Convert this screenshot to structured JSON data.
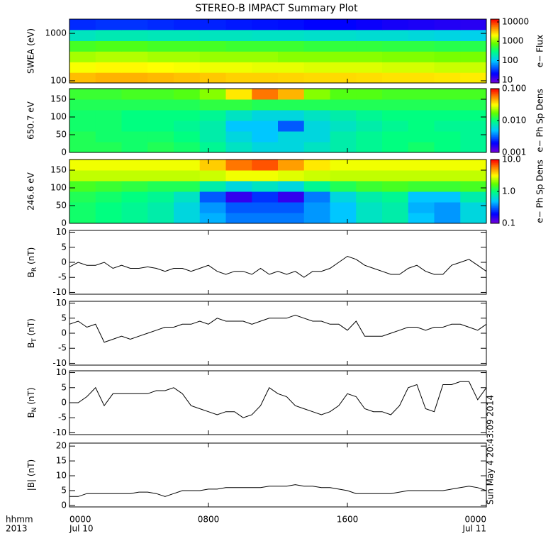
{
  "figure": {
    "title": "STEREO-B IMPACT Summary Plot",
    "xlim": [
      0,
      24
    ],
    "xticks": [
      {
        "value": 0,
        "label": "0000"
      },
      {
        "value": 8,
        "label": "0800"
      },
      {
        "value": 16,
        "label": "1600"
      },
      {
        "value": 24,
        "label": "0000"
      }
    ],
    "date_labels": [
      {
        "value": 0,
        "label": "Jul 10"
      },
      {
        "value": 24,
        "label": "Jul 11"
      }
    ],
    "x_axis_label": [
      "hhmm",
      "2013"
    ],
    "timestamp": "Sun May  4 20:43:09 2014",
    "x": [
      0,
      0.5,
      1,
      1.5,
      2,
      2.5,
      3,
      3.5,
      4,
      4.5,
      5,
      5.5,
      6,
      6.5,
      7,
      7.5,
      8,
      8.5,
      9,
      9.5,
      10,
      10.5,
      11,
      11.5,
      12,
      12.5,
      13,
      13.5,
      14,
      14.5,
      15,
      15.5,
      16,
      16.5,
      17,
      17.5,
      18,
      18.5,
      19,
      19.5,
      20,
      20.5,
      21,
      21.5,
      22,
      22.5,
      23,
      23.5,
      24
    ],
    "x_edges": [
      0,
      1.5,
      3,
      4.5,
      6,
      7.5,
      9,
      10.5,
      12,
      13.5,
      15,
      16.5,
      18,
      19.5,
      21,
      22.5,
      24
    ]
  },
  "chart_data": [
    {
      "type": "spectrogram",
      "ylabel": "SWEA (eV)",
      "ylog": true,
      "ylim": [
        90,
        2000
      ],
      "yticks": [
        100,
        1000
      ],
      "y_edges": [
        90,
        150,
        250,
        420,
        700,
        1200,
        2000
      ],
      "values": [
        [
          3500,
          3800,
          3800,
          3600,
          3400,
          3200,
          3000,
          3000,
          2900,
          2800,
          2800,
          2700,
          2600,
          2600,
          2500,
          2400
        ],
        [
          2000,
          2200,
          2200,
          2100,
          2000,
          1900,
          1900,
          1800,
          1800,
          1700,
          1700,
          1700,
          1600,
          1600,
          1500,
          1500
        ],
        [
          1200,
          1300,
          1300,
          1200,
          1200,
          1100,
          1100,
          1100,
          1000,
          1000,
          1000,
          1000,
          950,
          950,
          900,
          900
        ],
        [
          600,
          650,
          650,
          600,
          600,
          600,
          550,
          550,
          550,
          500,
          500,
          500,
          480,
          480,
          450,
          450
        ],
        [
          180,
          200,
          200,
          190,
          190,
          180,
          180,
          170,
          170,
          160,
          160,
          150,
          150,
          140,
          130,
          120
        ],
        [
          30,
          32,
          32,
          30,
          28,
          28,
          26,
          25,
          24,
          22,
          22,
          20,
          18,
          17,
          16,
          15
        ]
      ],
      "zlim": [
        7,
        14000
      ],
      "zticks": [
        10,
        100,
        1000,
        10000
      ],
      "zlabel": "e− Flux"
    },
    {
      "type": "spectrogram",
      "ylabel": "650.7 eV",
      "ylog": false,
      "ylim": [
        0,
        180
      ],
      "yticks": [
        0,
        50,
        100,
        150
      ],
      "y_edges": [
        0,
        30,
        60,
        90,
        120,
        150,
        180
      ],
      "values": [
        [
          0.012,
          0.012,
          0.011,
          0.012,
          0.011,
          0.009,
          0.007,
          0.006,
          0.006,
          0.007,
          0.008,
          0.009,
          0.01,
          0.011,
          0.01,
          0.009
        ],
        [
          0.012,
          0.011,
          0.011,
          0.011,
          0.01,
          0.008,
          0.006,
          0.005,
          0.006,
          0.006,
          0.008,
          0.009,
          0.01,
          0.01,
          0.01,
          0.009
        ],
        [
          0.011,
          0.011,
          0.01,
          0.01,
          0.009,
          0.008,
          0.005,
          0.005,
          0.003,
          0.006,
          0.007,
          0.008,
          0.009,
          0.01,
          0.009,
          0.009
        ],
        [
          0.011,
          0.011,
          0.01,
          0.01,
          0.01,
          0.009,
          0.007,
          0.006,
          0.006,
          0.007,
          0.008,
          0.009,
          0.01,
          0.01,
          0.01,
          0.01
        ],
        [
          0.012,
          0.012,
          0.012,
          0.012,
          0.012,
          0.013,
          0.013,
          0.012,
          0.012,
          0.012,
          0.012,
          0.012,
          0.012,
          0.012,
          0.012,
          0.012
        ],
        [
          0.014,
          0.014,
          0.015,
          0.015,
          0.016,
          0.02,
          0.035,
          0.06,
          0.045,
          0.02,
          0.016,
          0.016,
          0.015,
          0.015,
          0.015,
          0.015
        ]
      ],
      "zlim": [
        0.001,
        0.1
      ],
      "zticks": [
        0.001,
        {
          "value": 0.01,
          "label": "0.010"
        },
        {
          "value": 0.1,
          "label": "0.100"
        }
      ],
      "zlabel": "e− Ph Sp Dens"
    },
    {
      "type": "spectrogram",
      "ylabel": "246.6 eV",
      "ylog": false,
      "ylim": [
        0,
        180
      ],
      "yticks": [
        0,
        50,
        100,
        150
      ],
      "y_edges": [
        0,
        30,
        60,
        90,
        120,
        150,
        180
      ],
      "values": [
        [
          1.1,
          1.0,
          0.9,
          0.8,
          0.6,
          0.45,
          0.35,
          0.35,
          0.35,
          0.4,
          0.5,
          0.7,
          0.8,
          0.5,
          0.4,
          0.6
        ],
        [
          1.1,
          1.0,
          0.9,
          0.8,
          0.6,
          0.4,
          0.3,
          0.3,
          0.3,
          0.4,
          0.5,
          0.7,
          0.8,
          0.45,
          0.4,
          0.6
        ],
        [
          1.2,
          1.1,
          1.0,
          0.9,
          0.7,
          0.3,
          0.15,
          0.25,
          0.15,
          0.35,
          0.6,
          0.8,
          0.9,
          0.5,
          0.5,
          0.8
        ],
        [
          1.5,
          1.4,
          1.3,
          1.2,
          1.2,
          0.8,
          0.6,
          0.7,
          0.6,
          0.9,
          1.2,
          1.4,
          1.5,
          1.4,
          1.4,
          1.5
        ],
        [
          2.5,
          2.5,
          2.5,
          2.5,
          2.5,
          2.6,
          3,
          3,
          2.8,
          2.6,
          2.5,
          2.5,
          2.5,
          2.5,
          2.5,
          2.5
        ],
        [
          3,
          3,
          3,
          3,
          3,
          4,
          6,
          7,
          5,
          3.5,
          3,
          3,
          3,
          3,
          3,
          3
        ]
      ],
      "zlim": [
        0.1,
        10
      ],
      "zticks": [
        0.1,
        {
          "value": 1,
          "label": "1.0"
        },
        {
          "value": 10,
          "label": "10.0"
        }
      ],
      "zlabel": "e− Ph Sp Dens"
    },
    {
      "type": "line",
      "ylabel": "B",
      "ylabel_sub": "R",
      "ylabel_unit": " (nT)",
      "ylim": [
        -10.6,
        10.6
      ],
      "yticks": [
        -10,
        -5,
        0,
        5,
        10
      ],
      "color": "#000000",
      "values": [
        -1.5,
        0,
        -1,
        -1,
        0,
        -2,
        -1,
        -2,
        -2,
        -1.5,
        -2,
        -3,
        -2,
        -2,
        -3,
        -2,
        -1,
        -3,
        -4,
        -3,
        -3,
        -4,
        -2,
        -4,
        -3,
        -4,
        -3,
        -5,
        -3,
        -3,
        -2,
        0,
        2,
        1,
        -1,
        -2,
        -3,
        -4,
        -4,
        -2,
        -1,
        -3,
        -4,
        -4,
        -1,
        0,
        1,
        -1,
        -3
      ]
    },
    {
      "type": "line",
      "ylabel": "B",
      "ylabel_sub": "T",
      "ylabel_unit": " (nT)",
      "ylim": [
        -10.6,
        10.6
      ],
      "yticks": [
        -10,
        -5,
        0,
        5,
        10
      ],
      "color": "#000000",
      "values": [
        3,
        4,
        2,
        3,
        -3,
        -2,
        -1,
        -2,
        -1,
        0,
        1,
        2,
        2,
        3,
        3,
        4,
        3,
        5,
        4,
        4,
        4,
        3,
        4,
        5,
        5,
        5,
        6,
        5,
        4,
        4,
        3,
        3,
        1,
        4,
        -1,
        -1,
        -1,
        0,
        1,
        2,
        2,
        1,
        2,
        2,
        3,
        3,
        2,
        1,
        3
      ]
    },
    {
      "type": "line",
      "ylabel": "B",
      "ylabel_sub": "N",
      "ylabel_unit": " (nT)",
      "ylim": [
        -10.6,
        10.6
      ],
      "yticks": [
        -10,
        -5,
        0,
        5,
        10
      ],
      "color": "#000000",
      "values": [
        0,
        0,
        2,
        5,
        -1,
        3,
        3,
        3,
        3,
        3,
        4,
        4,
        5,
        3,
        -1,
        -2,
        -3,
        -4,
        -3,
        -3,
        -5,
        -4,
        -1,
        5,
        3,
        2,
        -1,
        -2,
        -3,
        -4,
        -3,
        -1,
        3,
        2,
        -2,
        -3,
        -3,
        -4,
        -1,
        5,
        6,
        -2,
        -3,
        6,
        6,
        7,
        7,
        1,
        5
      ]
    },
    {
      "type": "line",
      "ylabel": "|B|",
      "ylabel_sub": "",
      "ylabel_unit": " (nT)",
      "ylim": [
        -0.5,
        21
      ],
      "yticks": [
        0,
        5,
        10,
        15,
        20
      ],
      "color": "#000000",
      "values": [
        3,
        3,
        4,
        4,
        4,
        4,
        4,
        4,
        4.5,
        4.5,
        4,
        3,
        4,
        5,
        5,
        5,
        5.5,
        5.5,
        6,
        6,
        6,
        6,
        6,
        6.5,
        6.5,
        6.5,
        7,
        6.5,
        6.5,
        6,
        6,
        5.5,
        5,
        4,
        4,
        4,
        4,
        4,
        4.5,
        5,
        5,
        5,
        5,
        5,
        5.5,
        6,
        6.5,
        6,
        5
      ]
    }
  ]
}
